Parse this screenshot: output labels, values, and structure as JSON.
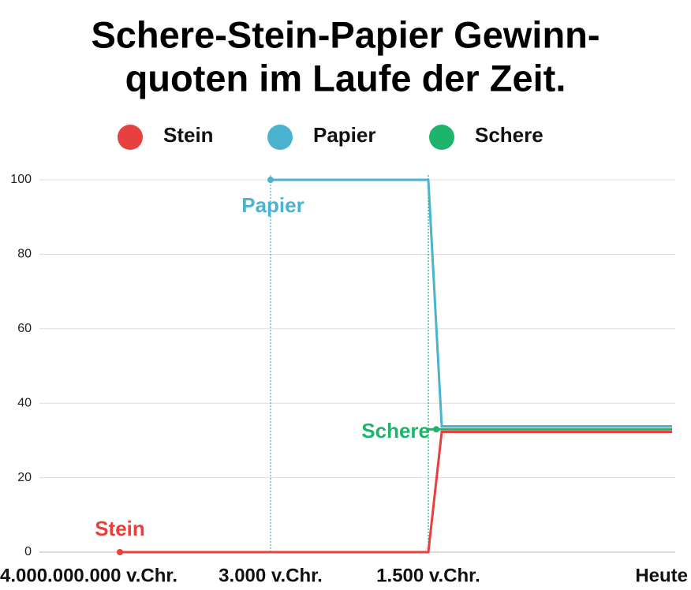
{
  "chart_data": {
    "type": "line",
    "title": [
      "Schere-Stein-Papier Gewinn-",
      "quoten im Laufe der Zeit."
    ],
    "categories": [
      "4.000.000.000 v.Chr.",
      "3.000 v.Chr.",
      "1.500 v.Chr.",
      null,
      "Heute"
    ],
    "series": [
      {
        "name": "Stein",
        "color": "#e8403f",
        "values": [
          0,
          0,
          0,
          32.3,
          32.3
        ]
      },
      {
        "name": "Papier",
        "color": "#4ab3d0",
        "values": [
          null,
          100,
          100,
          33.8,
          33.8
        ]
      },
      {
        "name": "Schere",
        "color": "#1db46b",
        "values": [
          null,
          null,
          33,
          33,
          33
        ]
      }
    ],
    "annotations": [
      "Stein",
      "Papier",
      "Schere"
    ],
    "ylim": [
      0,
      100
    ],
    "yticks": [
      0,
      20,
      40,
      60,
      80,
      100
    ],
    "grid": true
  }
}
